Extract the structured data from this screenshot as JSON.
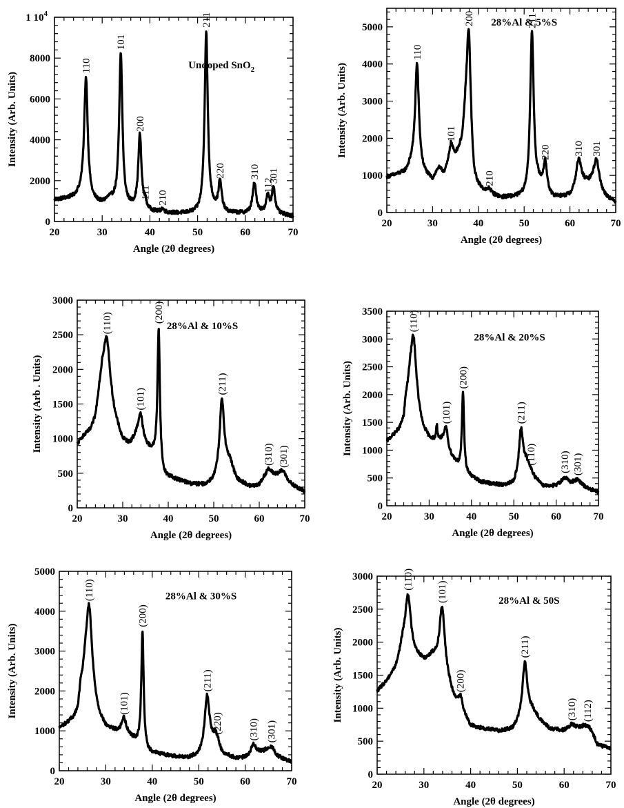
{
  "figure": {
    "description": "XRD patterns of SnO2 films: undoped and 28%Al co-doped with increasing S content"
  },
  "colors": {
    "trace": "#000000",
    "background": "#ffffff"
  },
  "chart_data": [
    {
      "type": "line",
      "title": "Undoped SnO",
      "title_subscript": "2",
      "xlabel": "Angle (2θ degrees)",
      "ylabel": "Intensity (Arb. Units)",
      "xlim": [
        20,
        70
      ],
      "ylim": [
        0,
        10000
      ],
      "x_ticks": [
        20,
        30,
        40,
        50,
        60,
        70
      ],
      "y_ticks": [
        0,
        2000,
        4000,
        6000,
        8000
      ],
      "y_top_label": "1 10",
      "y_top_label_exp": "4",
      "grid": false,
      "baseline": [
        [
          20,
          1050
        ],
        [
          24,
          1150
        ],
        [
          25.5,
          1300
        ],
        [
          28,
          950
        ],
        [
          30,
          850
        ],
        [
          31.5,
          1050
        ],
        [
          33,
          900
        ],
        [
          35,
          700
        ],
        [
          37,
          650
        ],
        [
          39,
          500
        ],
        [
          42,
          420
        ],
        [
          46,
          380
        ],
        [
          50,
          380
        ],
        [
          53,
          600
        ],
        [
          56,
          400
        ],
        [
          60,
          380
        ],
        [
          63,
          420
        ],
        [
          67,
          350
        ],
        [
          70,
          260
        ]
      ],
      "peaks": [
        {
          "label": "110",
          "x": 26.6,
          "y": 7050,
          "w": 0.45
        },
        {
          "label": "101",
          "x": 33.9,
          "y": 8200,
          "w": 0.4
        },
        {
          "label": "200",
          "x": 37.9,
          "y": 4200,
          "w": 0.4
        },
        {
          "label": "111",
          "x": 39.0,
          "y": 850,
          "w": 0.3
        },
        {
          "label": "210",
          "x": 42.6,
          "y": 580,
          "w": 0.4
        },
        {
          "label": "211",
          "x": 51.8,
          "y": 9300,
          "w": 0.4
        },
        {
          "label": "220",
          "x": 54.7,
          "y": 1900,
          "w": 0.4
        },
        {
          "label": "310",
          "x": 61.9,
          "y": 1850,
          "w": 0.45
        },
        {
          "label": "112",
          "x": 64.7,
          "y": 1200,
          "w": 0.4
        },
        {
          "label": "301",
          "x": 65.9,
          "y": 1650,
          "w": 0.4
        }
      ]
    },
    {
      "type": "line",
      "title": "28%Al & 5%S",
      "xlabel": "Angle (2θ degrees)",
      "ylabel": "Intensity (Arb. Units)",
      "xlim": [
        20,
        70
      ],
      "ylim": [
        0,
        5500
      ],
      "x_ticks": [
        20,
        30,
        40,
        50,
        60,
        70
      ],
      "y_ticks": [
        0,
        1000,
        2000,
        3000,
        4000,
        5000
      ],
      "grid": false,
      "baseline": [
        [
          20,
          950
        ],
        [
          24,
          1050
        ],
        [
          25.5,
          1250
        ],
        [
          28,
          1000
        ],
        [
          30,
          850
        ],
        [
          31.3,
          1150
        ],
        [
          32.5,
          1000
        ],
        [
          33.2,
          1100
        ],
        [
          35,
          1400
        ],
        [
          36.5,
          1700
        ],
        [
          37.2,
          2200
        ],
        [
          39,
          650
        ],
        [
          42,
          480
        ],
        [
          45,
          380
        ],
        [
          50,
          400
        ],
        [
          53,
          700
        ],
        [
          56,
          380
        ],
        [
          60,
          400
        ],
        [
          63,
          700
        ],
        [
          64.5,
          700
        ],
        [
          67,
          420
        ],
        [
          70,
          260
        ]
      ],
      "peaks": [
        {
          "label": "110",
          "x": 26.6,
          "y": 4000,
          "w": 0.5
        },
        {
          "label": "101",
          "x": 34.0,
          "y": 1800,
          "w": 0.55
        },
        {
          "label": "200",
          "x": 37.9,
          "y": 4900,
          "w": 0.55
        },
        {
          "label": "210",
          "x": 42.4,
          "y": 600,
          "w": 0.5
        },
        {
          "label": "211",
          "x": 51.7,
          "y": 4850,
          "w": 0.45
        },
        {
          "label": "220",
          "x": 54.6,
          "y": 1300,
          "w": 0.5
        },
        {
          "label": "310",
          "x": 61.9,
          "y": 1400,
          "w": 0.7
        },
        {
          "label": "301",
          "x": 65.8,
          "y": 1400,
          "w": 0.8
        }
      ]
    },
    {
      "type": "line",
      "title": "28%Al & 10%S",
      "xlabel": "Angle (2θ degrees)",
      "ylabel": "Intensity (Arb . Units)",
      "xlim": [
        20,
        70
      ],
      "ylim": [
        0,
        3000
      ],
      "x_ticks": [
        20,
        30,
        40,
        50,
        60,
        70
      ],
      "y_ticks": [
        0,
        500,
        1000,
        1500,
        2000,
        2500,
        3000
      ],
      "grid": false,
      "baseline": [
        [
          20,
          900
        ],
        [
          21,
          1000
        ],
        [
          23,
          1100
        ],
        [
          24,
          1250
        ],
        [
          24.8,
          1600
        ],
        [
          25.5,
          1800
        ],
        [
          28.5,
          1200
        ],
        [
          30,
          950
        ],
        [
          31.5,
          900
        ],
        [
          33,
          1000
        ],
        [
          35.5,
          850
        ],
        [
          37.3,
          750
        ],
        [
          39,
          450
        ],
        [
          42,
          400
        ],
        [
          45,
          340
        ],
        [
          48,
          320
        ],
        [
          50,
          370
        ],
        [
          53.5,
          650
        ],
        [
          55,
          400
        ],
        [
          58,
          300
        ],
        [
          60,
          320
        ],
        [
          61,
          400
        ],
        [
          63,
          450
        ],
        [
          65,
          460
        ],
        [
          67,
          330
        ],
        [
          70,
          230
        ]
      ],
      "peaks": [
        {
          "label": "(110)",
          "x": 26.5,
          "y": 2450,
          "w": 0.9
        },
        {
          "label": "(101)",
          "x": 33.9,
          "y": 1350,
          "w": 0.6
        },
        {
          "label": "(200)",
          "x": 37.9,
          "y": 2600,
          "w": 0.3
        },
        {
          "label": "(211)",
          "x": 51.8,
          "y": 1570,
          "w": 0.6
        },
        {
          "label": "(310)",
          "x": 62.0,
          "y": 550,
          "w": 0.8
        },
        {
          "label": "(301)",
          "x": 65.3,
          "y": 520,
          "w": 0.9
        }
      ]
    },
    {
      "type": "line",
      "title": "28%Al & 20%S",
      "xlabel": "Angle (2θ degrees)",
      "ylabel": "Intensity (Arb. Units)",
      "xlim": [
        20,
        70
      ],
      "ylim": [
        0,
        3500
      ],
      "x_ticks": [
        20,
        30,
        40,
        50,
        60,
        70
      ],
      "y_ticks": [
        0,
        500,
        1000,
        1500,
        2000,
        2500,
        3000,
        3500
      ],
      "grid": false,
      "baseline": [
        [
          20,
          1150
        ],
        [
          23,
          1350
        ],
        [
          24,
          1500
        ],
        [
          24.5,
          1850
        ],
        [
          25.5,
          2100
        ],
        [
          28.5,
          1350
        ],
        [
          30,
          1200
        ],
        [
          31.5,
          1150
        ],
        [
          33,
          1150
        ],
        [
          35,
          900
        ],
        [
          37,
          700
        ],
        [
          39,
          550
        ],
        [
          42,
          430
        ],
        [
          45,
          390
        ],
        [
          48,
          360
        ],
        [
          50,
          400
        ],
        [
          53,
          780
        ],
        [
          55,
          500
        ],
        [
          57,
          360
        ],
        [
          60,
          360
        ],
        [
          62,
          480
        ],
        [
          63.5,
          420
        ],
        [
          65,
          460
        ],
        [
          67,
          330
        ],
        [
          70,
          240
        ]
      ],
      "peaks": [
        {
          "label": "(110)",
          "x": 26.3,
          "y": 3050,
          "w": 0.8
        },
        {
          "label": "(101)",
          "x": 31.8,
          "y": 1420,
          "w": 0.2
        },
        {
          "label": "(101)",
          "x": 34.0,
          "y": 1400,
          "w": 0.5
        },
        {
          "label": "(200)",
          "x": 38.0,
          "y": 2030,
          "w": 0.3
        },
        {
          "label": "(211)",
          "x": 51.7,
          "y": 1400,
          "w": 0.55
        },
        {
          "label": "(110)",
          "x": 54.0,
          "y": 650,
          "w": 0.6
        },
        {
          "label": "(310)",
          "x": 62.0,
          "y": 510,
          "w": 0.8
        },
        {
          "label": "(301)",
          "x": 65.0,
          "y": 470,
          "w": 0.9
        }
      ],
      "labelled_peaks": [
        "(110)",
        "(101)",
        "(200)",
        "(211)",
        "(110)",
        "(310)",
        "(301)"
      ]
    },
    {
      "type": "line",
      "title": "28%Al & 30%S",
      "xlabel": "Angle (2θ degrees)",
      "ylabel": "Intensity (Arb. Units)",
      "xlim": [
        20,
        70
      ],
      "ylim": [
        0,
        5000
      ],
      "x_ticks": [
        20,
        30,
        40,
        50,
        60,
        70
      ],
      "y_ticks": [
        0,
        1000,
        2000,
        3000,
        4000,
        5000
      ],
      "grid": false,
      "baseline": [
        [
          20,
          1050
        ],
        [
          23,
          1250
        ],
        [
          24,
          1400
        ],
        [
          24.5,
          1900
        ],
        [
          25.5,
          2200
        ],
        [
          28.5,
          1300
        ],
        [
          30,
          1050
        ],
        [
          32.5,
          950
        ],
        [
          35,
          850
        ],
        [
          36.5,
          720
        ],
        [
          39,
          450
        ],
        [
          42,
          400
        ],
        [
          45,
          350
        ],
        [
          48,
          320
        ],
        [
          50,
          380
        ],
        [
          53.5,
          800
        ],
        [
          55,
          420
        ],
        [
          58,
          300
        ],
        [
          60,
          310
        ],
        [
          63,
          420
        ],
        [
          64.5,
          450
        ],
        [
          67,
          320
        ],
        [
          70,
          220
        ]
      ],
      "peaks": [
        {
          "label": "(110)",
          "x": 26.4,
          "y": 4150,
          "w": 0.8
        },
        {
          "label": "(101)",
          "x": 33.9,
          "y": 1300,
          "w": 0.6
        },
        {
          "label": "(200)",
          "x": 37.9,
          "y": 3500,
          "w": 0.3
        },
        {
          "label": "(211)",
          "x": 51.8,
          "y": 1880,
          "w": 0.6
        },
        {
          "label": "(220)",
          "x": 54.0,
          "y": 800,
          "w": 0.6
        },
        {
          "label": "(310)",
          "x": 61.8,
          "y": 650,
          "w": 0.7
        },
        {
          "label": "(301)",
          "x": 65.6,
          "y": 600,
          "w": 0.9
        }
      ]
    },
    {
      "type": "line",
      "title": "28%Al & 50S",
      "xlabel": "Angle (2θ degrees)",
      "ylabel": "Intensity (Arb. Units)",
      "xlim": [
        20,
        70
      ],
      "ylim": [
        0,
        3000
      ],
      "x_ticks": [
        20,
        30,
        40,
        50,
        60,
        70
      ],
      "y_ticks": [
        0,
        500,
        1000,
        1500,
        2000,
        2500,
        3000
      ],
      "grid": false,
      "baseline": [
        [
          20,
          1250
        ],
        [
          22,
          1400
        ],
        [
          24,
          1600
        ],
        [
          25.5,
          1950
        ],
        [
          28,
          1800
        ],
        [
          30,
          1700
        ],
        [
          31.8,
          1750
        ],
        [
          32.5,
          1700
        ],
        [
          35.5,
          1300
        ],
        [
          36.5,
          1100
        ],
        [
          38.5,
          900
        ],
        [
          40,
          720
        ],
        [
          43,
          680
        ],
        [
          46,
          650
        ],
        [
          49,
          670
        ],
        [
          50.5,
          800
        ],
        [
          53,
          950
        ],
        [
          55,
          800
        ],
        [
          57,
          680
        ],
        [
          60,
          660
        ],
        [
          62,
          700
        ],
        [
          64,
          700
        ],
        [
          66,
          620
        ],
        [
          67,
          450
        ],
        [
          70,
          380
        ]
      ],
      "peaks": [
        {
          "label": "(110)",
          "x": 26.6,
          "y": 2720,
          "w": 0.7
        },
        {
          "label": "(101)",
          "x": 33.9,
          "y": 2530,
          "w": 0.7
        },
        {
          "label": "(200)",
          "x": 37.8,
          "y": 1180,
          "w": 0.5
        },
        {
          "label": "(211)",
          "x": 51.6,
          "y": 1700,
          "w": 0.6
        },
        {
          "label": "(310)",
          "x": 61.6,
          "y": 750,
          "w": 0.6
        },
        {
          "label": "(112)",
          "x": 65.0,
          "y": 730,
          "w": 0.9
        }
      ]
    }
  ]
}
